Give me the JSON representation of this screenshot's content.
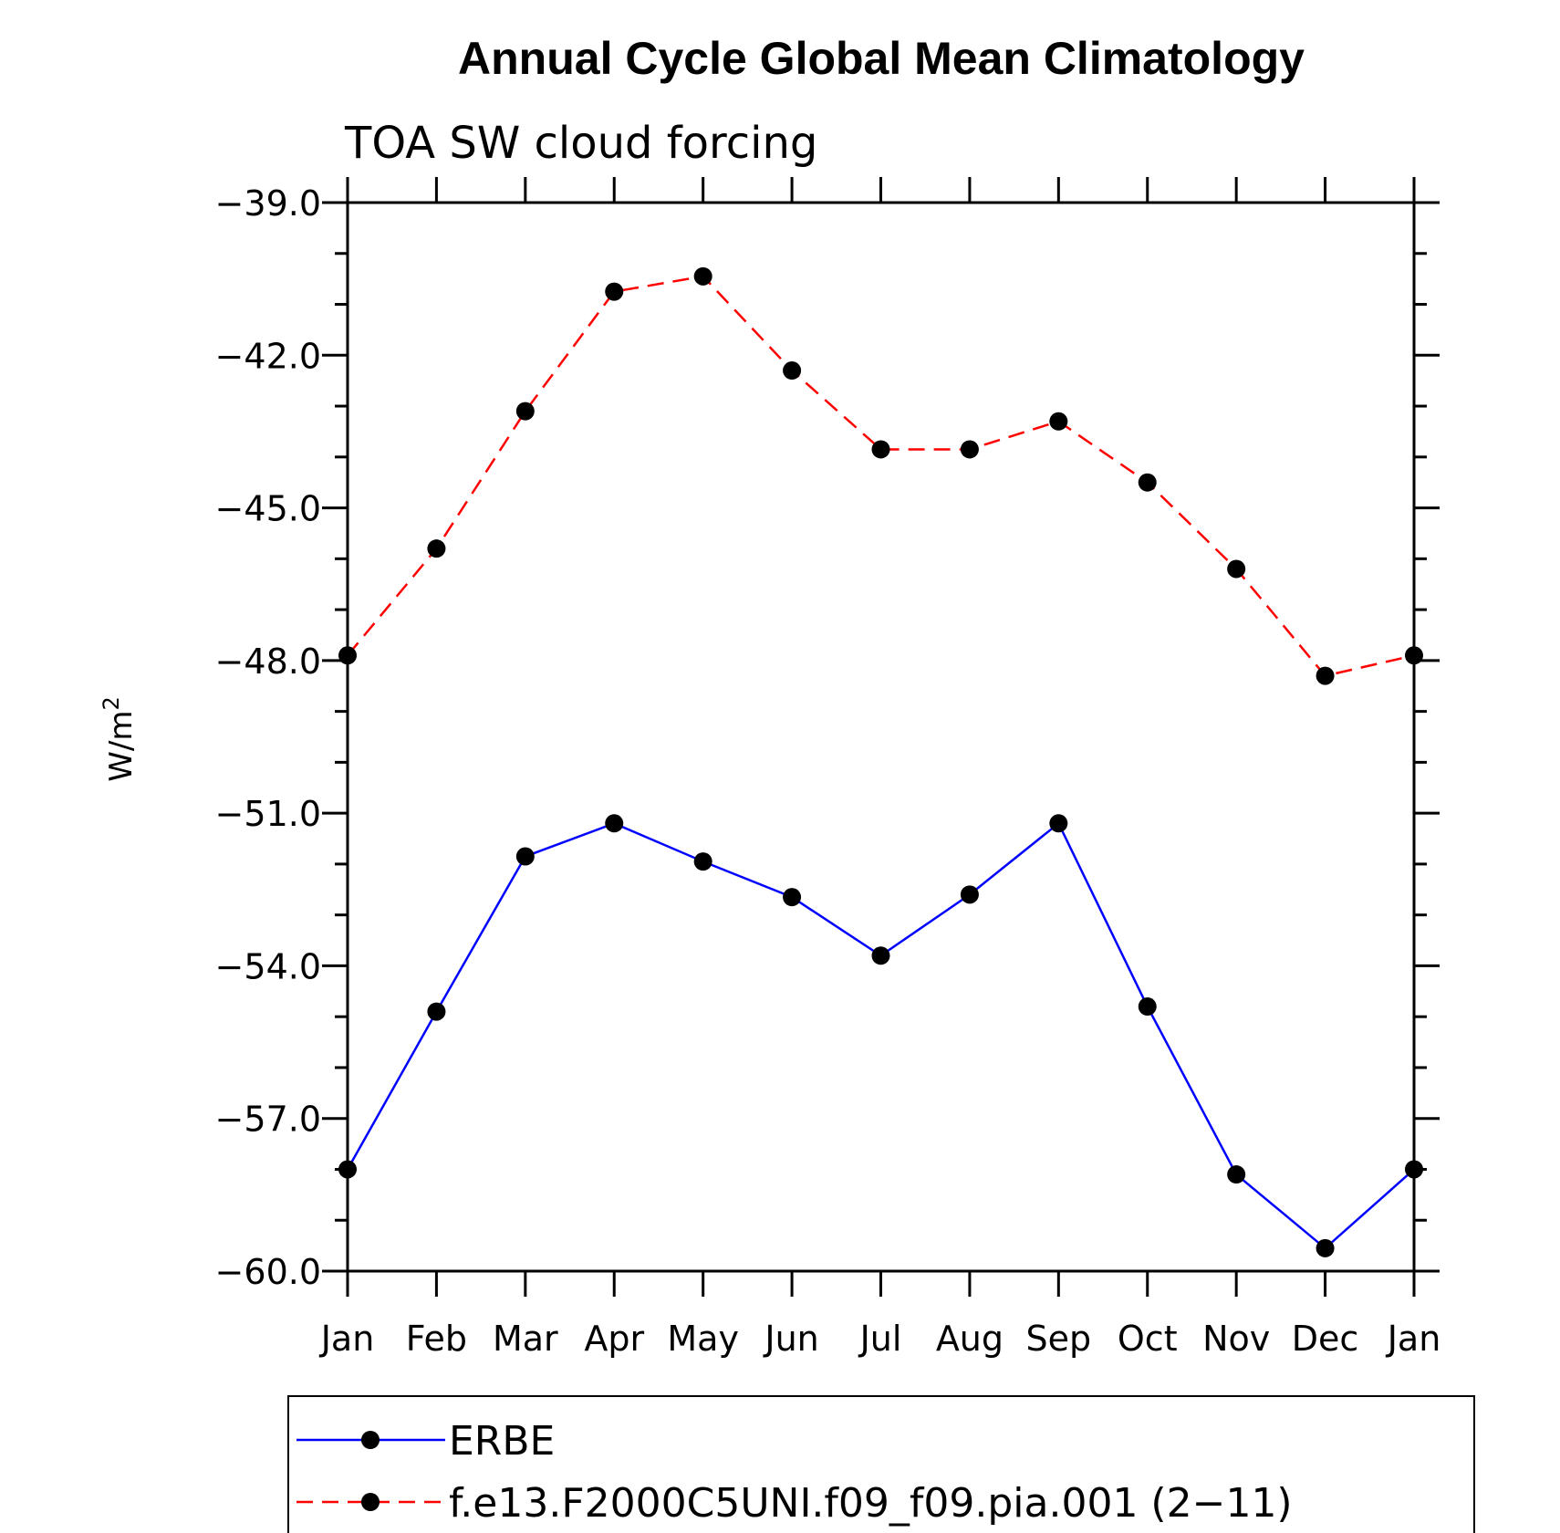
{
  "chart_data": {
    "type": "line",
    "title": "Annual Cycle Global Mean Climatology",
    "subtitle": "TOA SW cloud forcing",
    "ylabel": "W/m",
    "ylabel_superscript": "2",
    "xlabel": "",
    "categories": [
      "Jan",
      "Feb",
      "Mar",
      "Apr",
      "May",
      "Jun",
      "Jul",
      "Aug",
      "Sep",
      "Oct",
      "Nov",
      "Dec",
      "Jan"
    ],
    "yticks": [
      "-39.0",
      "-42.0",
      "-45.0",
      "-48.0",
      "-51.0",
      "-54.0",
      "-57.0",
      "-60.0"
    ],
    "ylim": [
      -60,
      -39
    ],
    "grid": false,
    "legend_position": "bottom",
    "series": [
      {
        "name": "ERBE",
        "color": "#0000ff",
        "dash": "solid",
        "values": [
          -58.0,
          -54.9,
          -51.85,
          -51.2,
          -51.95,
          -52.65,
          -53.8,
          -52.6,
          -51.2,
          -54.8,
          -58.1,
          -59.55,
          -58.0
        ]
      },
      {
        "name": "f.e13.F2000C5UNI.f09_f09.pia.001 (2-11)",
        "color": "#ff0000",
        "dash": "dashed",
        "values": [
          -47.9,
          -45.8,
          -43.1,
          -40.75,
          -40.45,
          -42.3,
          -43.85,
          -43.85,
          -43.3,
          -44.5,
          -46.2,
          -48.3,
          -47.9
        ]
      }
    ]
  }
}
